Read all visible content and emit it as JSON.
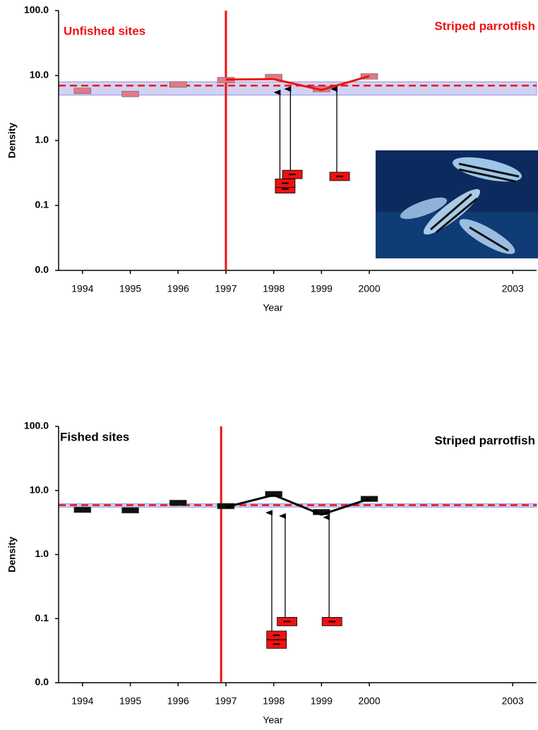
{
  "chart_data": [
    {
      "type": "line",
      "subtitle": "Unfished sites",
      "title": "Striped parrotfish",
      "title_color": "#ee1111",
      "x_label": "Year",
      "y_label": "Density",
      "log_y": true,
      "xlim": [
        1993.5,
        2003.5
      ],
      "xticks": [
        1994,
        1995,
        1996,
        1997,
        1998,
        1999,
        2000,
        2003
      ],
      "ylim": [
        0.01,
        100
      ],
      "yticks": [
        {
          "value": 0.01,
          "label": "0.0"
        },
        {
          "value": 0.1,
          "label": "0.1"
        },
        {
          "value": 1,
          "label": "1.0"
        },
        {
          "value": 10,
          "label": "10.0"
        },
        {
          "value": 100,
          "label": "100.0"
        }
      ],
      "annual_means": {
        "x": [
          1994,
          1995,
          1996,
          1997,
          1998,
          1999,
          2000
        ],
        "values": [
          5.8,
          5.2,
          7.3,
          8.5,
          9.5,
          6.2,
          9.7
        ],
        "color": "#e07a86"
      },
      "trend": {
        "x": [
          1997,
          1998,
          1999,
          2000
        ],
        "values": [
          8.7,
          8.8,
          6.0,
          9.8
        ],
        "color": "#ee1111"
      },
      "baseline": {
        "value": 7.0,
        "band": [
          5.0,
          8.0
        ],
        "color": "#ee1111",
        "band_color": "#c8c8f0"
      },
      "event_x": 1997,
      "recruits": {
        "x": [
          1998.24,
          1998.24,
          1998.39,
          1999.38
        ],
        "values": [
          0.18,
          0.22,
          0.3,
          0.28
        ],
        "color": "#ee1111"
      },
      "arrows": {
        "x": [
          1998.13,
          1998.35,
          1999.32
        ],
        "from": [
          0.22,
          0.3,
          0.28
        ],
        "to": [
          5.5,
          6.2,
          6.2
        ]
      }
    },
    {
      "type": "line",
      "subtitle": "Fished sites",
      "title": "Striped parrotfish",
      "title_color": "#000000",
      "x_label": "Year",
      "y_label": "Density",
      "log_y": true,
      "xlim": [
        1993.5,
        2003.5
      ],
      "xticks": [
        1994,
        1995,
        1996,
        1997,
        1998,
        1999,
        2000,
        2003
      ],
      "ylim": [
        0.01,
        100
      ],
      "yticks": [
        {
          "value": 0.01,
          "label": "0.0"
        },
        {
          "value": 0.1,
          "label": "0.1"
        },
        {
          "value": 1,
          "label": "1.0"
        },
        {
          "value": 10,
          "label": "10.0"
        },
        {
          "value": 100,
          "label": "100.0"
        }
      ],
      "annual_means": {
        "x": [
          1994,
          1995,
          1996,
          1997,
          1998,
          1999,
          2000
        ],
        "values": [
          5.0,
          4.9,
          6.4,
          5.7,
          8.8,
          4.6,
          7.4
        ],
        "color": "#111111"
      },
      "trend": {
        "x": [
          1997,
          1998,
          1999,
          2000
        ],
        "values": [
          5.5,
          8.5,
          4.2,
          7.4
        ],
        "color": "#000000"
      },
      "baseline": {
        "value": 5.9,
        "band": [
          5.5,
          6.2
        ],
        "color": "#ee1111",
        "band_color": "#c8c8f0"
      },
      "event_x": 1996.9,
      "recruits": {
        "x": [
          1998.06,
          1998.06,
          1998.28,
          1999.22
        ],
        "values": [
          0.04,
          0.055,
          0.09,
          0.09
        ],
        "color": "#ee1111"
      },
      "arrows": {
        "x": [
          1997.96,
          1998.24,
          1999.16
        ],
        "from": [
          0.055,
          0.09,
          0.09
        ],
        "to": [
          4.5,
          4.0,
          3.8
        ]
      }
    }
  ]
}
